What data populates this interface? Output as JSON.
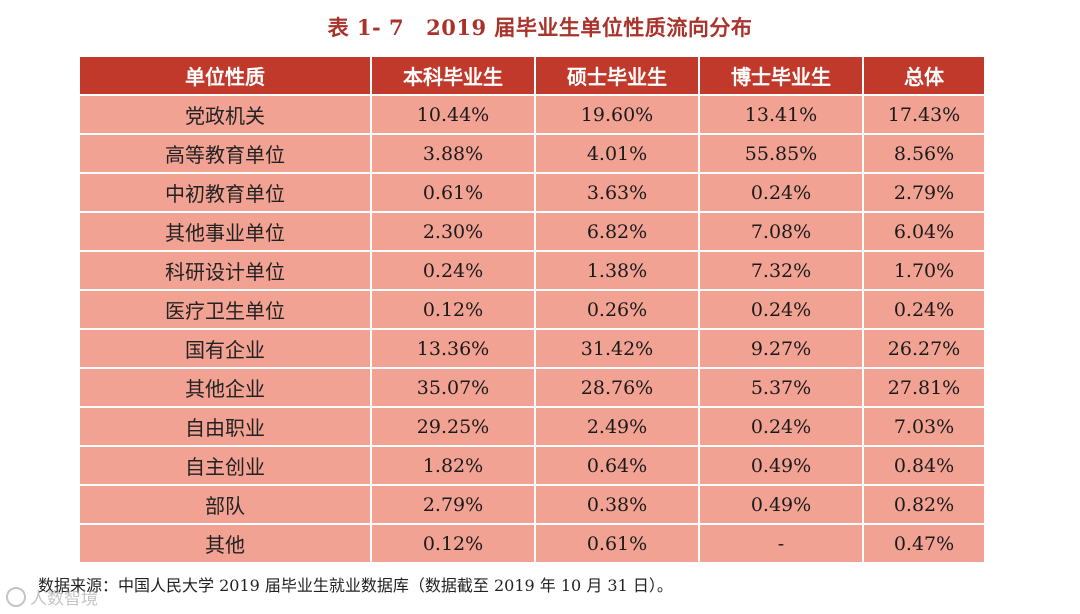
{
  "caption": {
    "number": "表 1- 7",
    "title": "2019 届毕业生单位性质流向分布"
  },
  "table": {
    "headers": [
      "单位性质",
      "本科毕业生",
      "硕士毕业生",
      "博士毕业生",
      "总体"
    ],
    "rows": [
      [
        "党政机关",
        "10.44%",
        "19.60%",
        "13.41%",
        "17.43%"
      ],
      [
        "高等教育单位",
        "3.88%",
        "4.01%",
        "55.85%",
        "8.56%"
      ],
      [
        "中初教育单位",
        "0.61%",
        "3.63%",
        "0.24%",
        "2.79%"
      ],
      [
        "其他事业单位",
        "2.30%",
        "6.82%",
        "7.08%",
        "6.04%"
      ],
      [
        "科研设计单位",
        "0.24%",
        "1.38%",
        "7.32%",
        "1.70%"
      ],
      [
        "医疗卫生单位",
        "0.12%",
        "0.26%",
        "0.24%",
        "0.24%"
      ],
      [
        "国有企业",
        "13.36%",
        "31.42%",
        "9.27%",
        "26.27%"
      ],
      [
        "其他企业",
        "35.07%",
        "28.76%",
        "5.37%",
        "27.81%"
      ],
      [
        "自由职业",
        "29.25%",
        "2.49%",
        "0.24%",
        "7.03%"
      ],
      [
        "自主创业",
        "1.82%",
        "0.64%",
        "0.49%",
        "0.84%"
      ],
      [
        "部队",
        "2.79%",
        "0.38%",
        "0.49%",
        "0.82%"
      ],
      [
        "其他",
        "0.12%",
        "0.61%",
        "-",
        "0.47%"
      ]
    ]
  },
  "source_note": "数据来源：中国人民大学 2019 届毕业生就业数据库（数据截至 2019 年 10 月 31 日）。",
  "watermark": "人数智境",
  "colors": {
    "header_bg": "#c0392b",
    "cell_bg": "#f2a293",
    "caption_text": "#a9322a"
  }
}
